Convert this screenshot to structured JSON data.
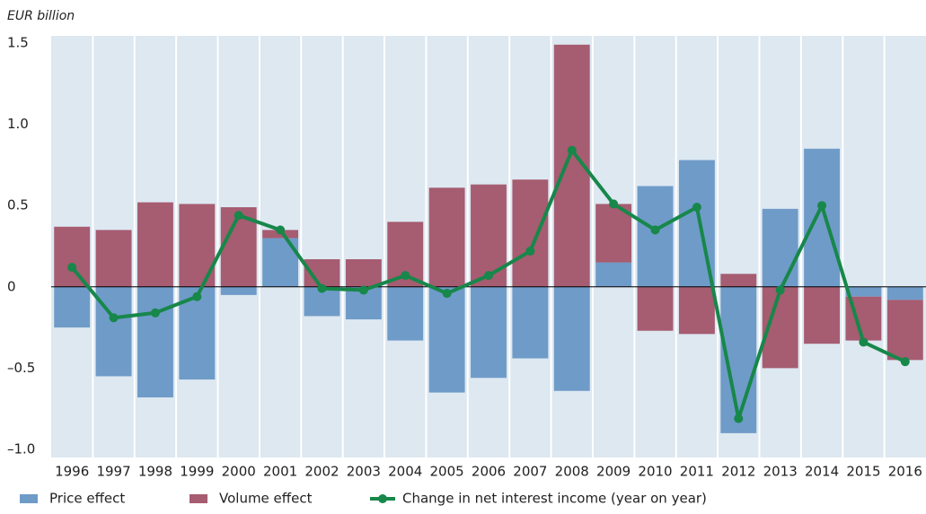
{
  "chart_data": {
    "type": "bar-line",
    "y_label": "EUR billion",
    "categories": [
      "1996",
      "1997",
      "1998",
      "1999",
      "2000",
      "2001",
      "2002",
      "2003",
      "2004",
      "2005",
      "2006",
      "2007",
      "2008",
      "2009",
      "2010",
      "2011",
      "2012",
      "2013",
      "2014",
      "2015",
      "2016"
    ],
    "series": [
      {
        "name": "Price effect",
        "type": "bar",
        "color": "#6f9bc8",
        "values": [
          -0.25,
          -0.55,
          -0.68,
          -0.57,
          -0.05,
          0.3,
          -0.18,
          -0.2,
          -0.33,
          -0.65,
          -0.56,
          -0.44,
          -0.64,
          0.15,
          0.62,
          0.78,
          -0.9,
          0.48,
          0.85,
          -0.06,
          -0.08
        ]
      },
      {
        "name": "Volume effect",
        "type": "bar",
        "color": "#a65c71",
        "values": [
          0.37,
          0.35,
          0.52,
          0.51,
          0.49,
          0.05,
          0.17,
          0.17,
          0.4,
          0.61,
          0.63,
          0.66,
          1.49,
          0.36,
          -0.27,
          -0.29,
          0.08,
          -0.5,
          -0.35,
          -0.27,
          -0.37
        ]
      },
      {
        "name": "Change in net interest income (year on year)",
        "type": "line",
        "color": "#17874a",
        "values": [
          0.12,
          -0.19,
          -0.16,
          -0.06,
          0.44,
          0.35,
          -0.01,
          -0.02,
          0.07,
          -0.04,
          0.07,
          0.22,
          0.84,
          0.51,
          0.35,
          0.49,
          -0.81,
          -0.02,
          0.5,
          -0.34,
          -0.46
        ]
      }
    ],
    "ylim": [
      -1.0,
      1.5
    ],
    "yticks": [
      {
        "value": -1.0,
        "label": "–1.0"
      },
      {
        "value": -0.5,
        "label": "–0.5"
      },
      0,
      {
        "value": 0.5,
        "label": "0.5"
      },
      {
        "value": 1.0,
        "label": "1.0"
      },
      {
        "value": 1.5,
        "label": "1.5"
      }
    ],
    "stacked": true,
    "xgrid": true,
    "legend": "bottom"
  }
}
